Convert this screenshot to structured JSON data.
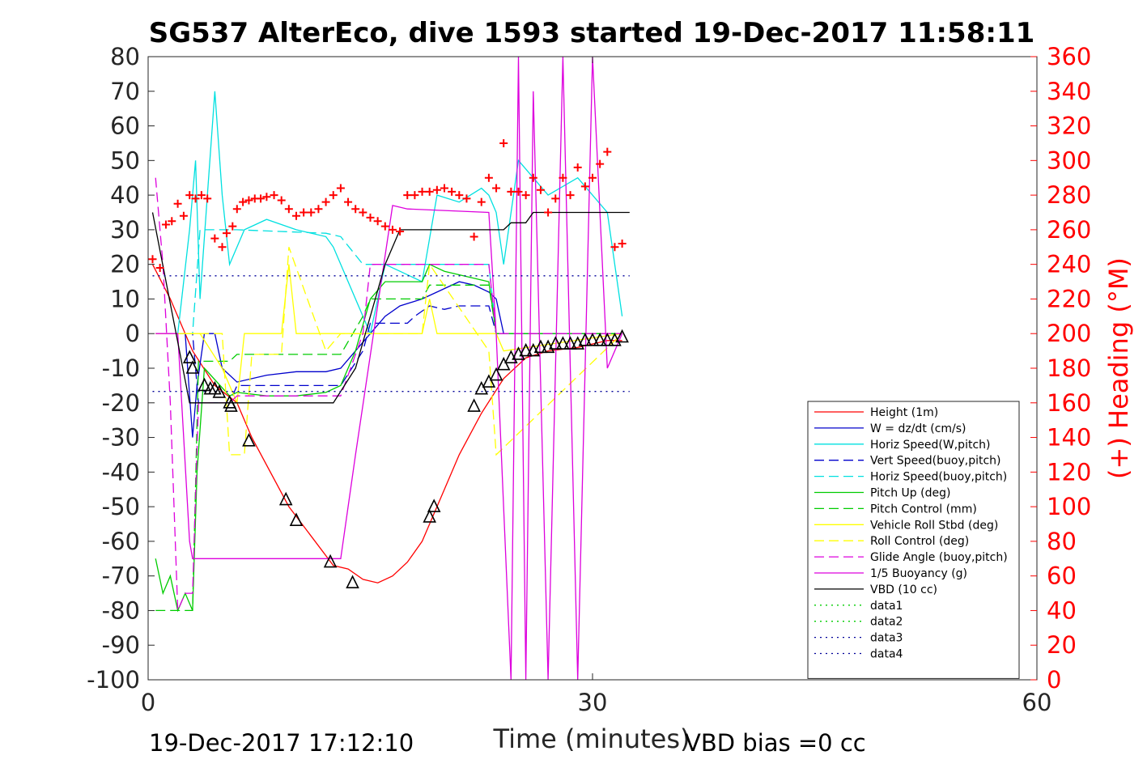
{
  "chart_data": {
    "type": "line",
    "title": "SG537 AlterEco, dive 1593 started 19-Dec-2017 11:58:11",
    "xlabel": "Time (minutes)",
    "ylabel_right": "(+) Heading (°M)",
    "xlim": [
      0,
      60
    ],
    "ylim": [
      -100,
      80
    ],
    "y2lim": [
      0,
      360
    ],
    "x_ticks": [
      "0",
      "30",
      "60"
    ],
    "y_ticks": [
      "80",
      "70",
      "60",
      "50",
      "40",
      "30",
      "20",
      "10",
      "0",
      "-10",
      "-20",
      "-30",
      "-40",
      "-50",
      "-60",
      "-70",
      "-80",
      "-90",
      "-100"
    ],
    "y2_ticks": [
      "360",
      "340",
      "320",
      "300",
      "280",
      "260",
      "240",
      "220",
      "200",
      "180",
      "160",
      "140",
      "120",
      "100",
      "80",
      "60",
      "40",
      "20",
      "0"
    ],
    "footer_left": "19-Dec-2017 17:12:10",
    "footer_right": "VBD bias =0 cc",
    "legend_position": "bottom-right",
    "colors": {
      "height": "#ff0000",
      "w": "#0000cc",
      "horiz_speed": "#00e0e0",
      "pitch": "#00cc00",
      "roll": "#ffff00",
      "glide": "#dd00dd",
      "vbd": "#000000",
      "heading": "#ff0000",
      "data": "#00aa00",
      "data_blue": "#000099"
    },
    "series": [
      {
        "name": "Height (1m)",
        "color": "#ff0000",
        "dash": "solid",
        "x": [
          0.3,
          1.5,
          3.0,
          4.5,
          6.0,
          7.0,
          9.5,
          12.5,
          13.5,
          14.5,
          15.5,
          16.5,
          17.5,
          18.5,
          19.0,
          20.0,
          21.0,
          22.5,
          24.0,
          25.5,
          27.0,
          29.0,
          31.0,
          32.0
        ],
        "y": [
          20,
          10,
          -5,
          -15,
          -20,
          -30,
          -50,
          -67,
          -68,
          -71,
          -72,
          -70,
          -66,
          -60,
          -55,
          -45,
          -35,
          -23,
          -13,
          -7,
          -5,
          -4,
          -2,
          -2
        ]
      },
      {
        "name": "W = dz/dt (cm/s)",
        "color": "#0000cc",
        "dash": "solid",
        "x": [
          0.5,
          2.5,
          3.0,
          3.3,
          3.8,
          4.5,
          5.0,
          6.0,
          8.0,
          10.0,
          12.0,
          13.0,
          14.0,
          15.0,
          16.0,
          17.0,
          18.5,
          20.0,
          21.0,
          22.0,
          23.0,
          23.5,
          24.0,
          30.0,
          32.0
        ],
        "y": [
          0,
          0,
          -30,
          -15,
          0,
          0,
          -10,
          -14,
          -12,
          -11,
          -11,
          -10,
          -5,
          0,
          5,
          8,
          10,
          13,
          15,
          14,
          12,
          10,
          0,
          0,
          0
        ]
      },
      {
        "name": "Horiz Speed(W,pitch)",
        "color": "#00e0e0",
        "dash": "solid",
        "x": [
          0.5,
          2.0,
          2.8,
          3.2,
          3.5,
          4.0,
          4.5,
          5.0,
          5.5,
          6.5,
          8.0,
          10.0,
          12.0,
          12.5,
          13.5,
          15.0,
          16.0,
          17.0,
          18.5,
          19.5,
          21.0,
          22.5,
          23.0,
          23.5,
          24.0,
          25.0,
          27.0,
          29.0,
          31.0,
          32.0
        ],
        "y": [
          0,
          0,
          30,
          50,
          10,
          40,
          70,
          40,
          20,
          30,
          33,
          30,
          28,
          25,
          15,
          0,
          20,
          18,
          15,
          40,
          38,
          42,
          40,
          35,
          20,
          50,
          40,
          45,
          35,
          5
        ]
      },
      {
        "name": "Vert Speed(buoy,pitch)",
        "color": "#0000cc",
        "dash": "dash",
        "x": [
          0.5,
          3.0,
          3.4,
          5.5,
          6.0,
          12.0,
          13.0,
          14.5,
          15.0,
          17.5,
          18.0,
          19.0,
          20.0,
          21.0,
          23.0,
          23.5,
          32.0
        ],
        "y": [
          0,
          0,
          -20,
          -20,
          -15,
          -15,
          -15,
          -5,
          3,
          3,
          5,
          8,
          7,
          8,
          8,
          0,
          0
        ]
      },
      {
        "name": "Horiz Speed(buoy,pitch)",
        "color": "#00e0e0",
        "dash": "dash",
        "x": [
          0.5,
          3.0,
          3.5,
          5.5,
          6.0,
          12.0,
          13.0,
          14.5,
          15.0,
          18.5,
          19.0,
          23.0,
          23.5,
          32.0
        ],
        "y": [
          0,
          0,
          30,
          30,
          30,
          29,
          28,
          20,
          20,
          20,
          20,
          20,
          0,
          0
        ]
      },
      {
        "name": "Pitch Up (deg)",
        "color": "#00cc00",
        "dash": "solid",
        "x": [
          0.5,
          1.0,
          1.5,
          2.0,
          2.5,
          3.0,
          3.3,
          3.8,
          5.5,
          6.0,
          8.0,
          10.0,
          12.0,
          13.0,
          14.0,
          15.0,
          16.0,
          18.5,
          19.0,
          20.0,
          23.0,
          23.5,
          32.0
        ],
        "y": [
          -65,
          -75,
          -70,
          -80,
          -75,
          -80,
          -40,
          -10,
          -18,
          -17,
          -18,
          -18,
          -17,
          -15,
          -5,
          10,
          15,
          15,
          20,
          18,
          15,
          0,
          0
        ]
      },
      {
        "name": "Pitch Control (mm)",
        "color": "#00cc00",
        "dash": "dash",
        "x": [
          0.5,
          3.0,
          3.4,
          5.5,
          6.0,
          12.0,
          13.0,
          14.5,
          15.0,
          18.5,
          19.0,
          23.0,
          23.5,
          32.0
        ],
        "y": [
          -80,
          -80,
          -8,
          -8,
          -6,
          -6,
          -6,
          5,
          10,
          10,
          14,
          14,
          0,
          0
        ]
      },
      {
        "name": "Vehicle Roll Stbd (deg)",
        "color": "#ffff00",
        "dash": "solid",
        "x": [
          0.5,
          3.5,
          5.0,
          6.0,
          6.5,
          8.0,
          9.0,
          9.5,
          10.0,
          12.0,
          13.0,
          18.5,
          19.0,
          19.5,
          23.0,
          23.5,
          24.0,
          32.0
        ],
        "y": [
          0,
          0,
          -10,
          -20,
          0,
          0,
          0,
          20,
          0,
          0,
          0,
          0,
          10,
          0,
          0,
          0,
          -5,
          0
        ]
      },
      {
        "name": "Roll Control (deg)",
        "color": "#ffff00",
        "dash": "dash",
        "x": [
          0.5,
          5.0,
          5.5,
          6.5,
          7.0,
          9.0,
          9.5,
          12.0,
          13.0,
          18.5,
          19.0,
          23.0,
          23.5,
          32.0
        ],
        "y": [
          0,
          0,
          -35,
          -35,
          -6,
          -6,
          25,
          -5,
          0,
          0,
          20,
          -5,
          -35,
          0
        ]
      },
      {
        "name": "Glide Angle (buoy,pitch)",
        "color": "#dd00dd",
        "dash": "dash",
        "x": [
          0.5,
          1.0,
          1.5,
          2.0,
          2.5,
          3.0,
          3.4,
          5.5,
          6.0,
          12.0,
          13.0,
          14.5,
          15.0,
          18.5,
          19.0,
          23.0,
          23.5,
          32.0
        ],
        "y": [
          45,
          20,
          -20,
          -80,
          -75,
          -75,
          -20,
          -20,
          -18,
          -18,
          -18,
          0,
          20,
          20,
          20,
          20,
          0,
          0
        ]
      },
      {
        "name": "1/5 Buoyancy (g)",
        "color": "#dd00dd",
        "dash": "solid",
        "x": [
          0.5,
          2.0,
          2.8,
          3.0,
          12.0,
          13.0,
          14.0,
          16.5,
          17.5,
          23.0,
          23.5,
          24.5,
          25.0,
          25.5,
          26.0,
          27.0,
          28.0,
          29.0,
          30.0,
          31.0,
          32.0
        ],
        "y": [
          0,
          0,
          -60,
          -65,
          -65,
          -65,
          -35,
          37,
          36,
          35,
          0,
          -100,
          80,
          -100,
          70,
          -100,
          80,
          -100,
          80,
          -10,
          0
        ]
      },
      {
        "name": "VBD (10 cc)",
        "color": "#000000",
        "dash": "solid",
        "x": [
          0.3,
          2.8,
          12.0,
          12.5,
          14.0,
          15.0,
          16.0,
          17.0,
          24.0,
          24.5,
          25.5,
          26.0,
          32.5
        ],
        "y": [
          35,
          -20,
          -20,
          -20,
          -10,
          5,
          20,
          30,
          30,
          32,
          32,
          35,
          35
        ]
      },
      {
        "name": "data1",
        "color": "#00cc00",
        "dash": "dot",
        "x": [],
        "y": []
      },
      {
        "name": "data2",
        "color": "#00cc00",
        "dash": "dot",
        "x": [],
        "y": []
      },
      {
        "name": "data3",
        "color": "#000099",
        "dash": "dot",
        "x": [
          0.3,
          32.5
        ],
        "y": [
          16.7,
          16.7
        ]
      },
      {
        "name": "data4",
        "color": "#000099",
        "dash": "dot",
        "x": [
          0.3,
          32.5
        ],
        "y": [
          -16.7,
          -16.7
        ]
      }
    ],
    "heading_markers": {
      "x": [
        0.3,
        0.8,
        1.2,
        1.6,
        2.0,
        2.4,
        2.8,
        3.2,
        3.6,
        4.0,
        4.5,
        5.0,
        5.3,
        5.7,
        6.0,
        6.4,
        6.8,
        7.2,
        7.6,
        8.0,
        8.5,
        9.0,
        9.5,
        10.0,
        10.5,
        11.0,
        11.5,
        12.0,
        12.5,
        13.0,
        13.5,
        14.0,
        14.5,
        15.0,
        15.5,
        16.0,
        16.5,
        17.0,
        17.5,
        18.0,
        18.5,
        19.0,
        19.5,
        20.0,
        20.5,
        21.0,
        21.5,
        22.0,
        22.5,
        23.0,
        23.5,
        24.0,
        24.5,
        25.0,
        25.5,
        26.0,
        26.5,
        27.0,
        27.5,
        28.0,
        28.5,
        29.0,
        29.5,
        30.0,
        30.5,
        31.0,
        31.5,
        32.0
      ],
      "y": [
        243,
        238,
        263,
        265,
        275,
        268,
        280,
        278,
        280,
        278,
        255,
        250,
        258,
        262,
        272,
        276,
        277,
        278,
        278,
        279,
        280,
        277,
        272,
        268,
        270,
        270,
        272,
        276,
        280,
        284,
        276,
        272,
        270,
        267,
        265,
        262,
        260,
        259,
        280,
        280,
        282,
        282,
        283,
        284,
        282,
        280,
        278,
        256,
        276,
        290,
        284,
        310,
        282,
        282,
        280,
        290,
        283,
        270,
        278,
        290,
        280,
        296,
        285,
        290,
        298,
        305,
        250,
        252
      ]
    },
    "dive_markers": {
      "x": [
        2.8,
        3.0,
        3.8,
        4.2,
        4.5,
        4.8,
        5.5,
        5.6,
        6.8,
        9.3,
        10.0,
        12.3,
        13.8,
        19.0,
        19.3,
        22.0,
        22.5,
        23.0,
        23.5,
        24.0,
        24.5,
        25.0,
        25.5,
        26.0,
        26.5,
        27.0,
        27.5,
        28.0,
        28.5,
        29.0,
        29.5,
        30.0,
        30.5,
        31.0,
        31.5,
        32.0
      ],
      "y": [
        -7,
        -10,
        -15,
        -16,
        -16,
        -17,
        -20,
        -21,
        -31,
        -48,
        -54,
        -66,
        -72,
        -53,
        -50,
        -21,
        -16,
        -14,
        -12,
        -9,
        -7,
        -6,
        -5,
        -5,
        -4,
        -4,
        -3,
        -3,
        -3,
        -3,
        -2,
        -2,
        -2,
        -2,
        -2,
        -1
      ]
    }
  }
}
